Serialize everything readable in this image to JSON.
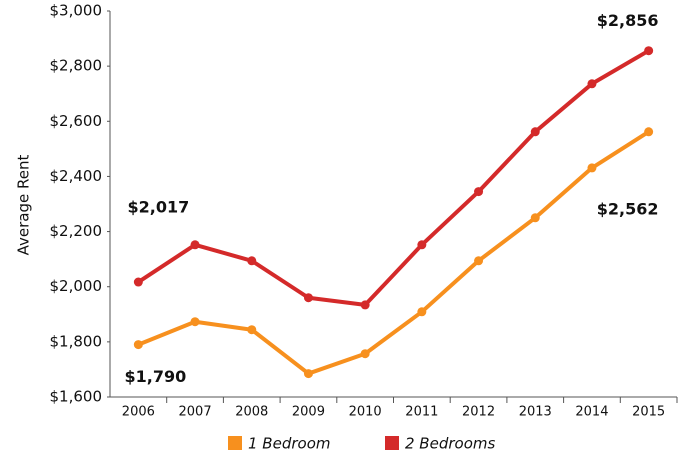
{
  "chart_data": {
    "type": "line",
    "y_axis_label": "Average Rent",
    "categories": [
      "2006",
      "2007",
      "2008",
      "2009",
      "2010",
      "2011",
      "2012",
      "2013",
      "2014",
      "2015"
    ],
    "series": [
      {
        "name": "1 Bedroom",
        "color": "#f7901e",
        "values": [
          1790,
          1873,
          1844,
          1685,
          1757,
          1909,
          2094,
          2250,
          2431,
          2562
        ],
        "value_labels": [
          "$1,790",
          null,
          null,
          null,
          null,
          null,
          null,
          null,
          null,
          "$2,562"
        ]
      },
      {
        "name": "2 Bedrooms",
        "color": "#d42a2a",
        "values": [
          2017,
          2152,
          2094,
          1960,
          1934,
          2152,
          2345,
          2562,
          2736,
          2856
        ],
        "value_labels": [
          "$2,017",
          null,
          null,
          null,
          null,
          null,
          null,
          null,
          null,
          "$2,856"
        ]
      }
    ],
    "ylim": [
      1600,
      3000
    ],
    "yticks": [
      {
        "value": 1600,
        "label": "$1,600"
      },
      {
        "value": 1800,
        "label": "$1,800"
      },
      {
        "value": 2000,
        "label": "$2,000"
      },
      {
        "value": 2200,
        "label": "$2,200"
      },
      {
        "value": 2400,
        "label": "$2,400"
      },
      {
        "value": 2600,
        "label": "$2,600"
      },
      {
        "value": 2800,
        "label": "$2,800"
      },
      {
        "value": 3000,
        "label": "$3,000"
      }
    ],
    "grid": false,
    "legend": "bottom"
  }
}
